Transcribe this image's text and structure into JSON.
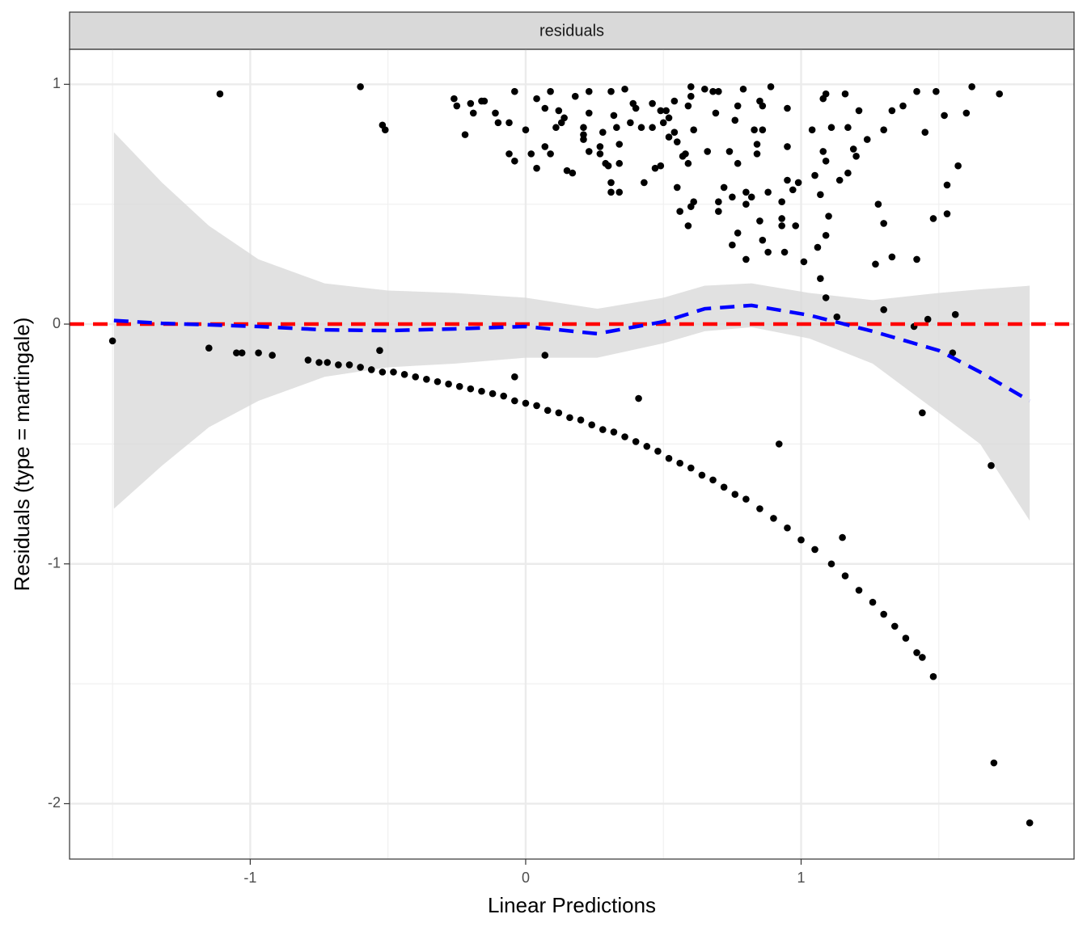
{
  "chart_data": {
    "type": "scatter",
    "facet_label": "residuals",
    "x_label": "Linear Predictions",
    "y_label": "Residuals (type = martingale)",
    "xlim": [
      -1.656,
      1.991
    ],
    "ylim": [
      -2.231,
      1.146
    ],
    "xticks": [
      -1,
      0,
      1
    ],
    "yticks": [
      -2,
      -1,
      0,
      1
    ],
    "x_minor_ticks": [
      -1.5,
      -0.5,
      0.5,
      1.5
    ],
    "y_minor_ticks": [
      -1.5,
      -0.5,
      0.5
    ],
    "grid": true,
    "points": {
      "color": "#000000",
      "x": [
        -1.11,
        -0.6,
        -0.52,
        -0.51,
        -0.26,
        -0.25,
        -0.2,
        -0.19,
        -0.22,
        -0.16,
        -0.15,
        -0.11,
        -0.1,
        -0.04,
        -0.06,
        0.0,
        -0.06,
        -0.04,
        0.02,
        0.04,
        0.04,
        0.07,
        0.07,
        0.09,
        0.09,
        0.12,
        0.13,
        0.11,
        0.14,
        0.15,
        0.17,
        0.18,
        0.21,
        0.21,
        0.21,
        0.23,
        0.23,
        0.23,
        0.27,
        0.28,
        0.27,
        0.29,
        0.3,
        0.31,
        0.31,
        0.31,
        0.32,
        0.33,
        0.34,
        0.34,
        0.34,
        0.36,
        0.38,
        0.39,
        0.4,
        0.42,
        0.43,
        0.46,
        0.46,
        0.47,
        0.49,
        0.5,
        0.49,
        0.51,
        0.52,
        0.52,
        0.54,
        0.54,
        0.55,
        0.55,
        0.56,
        0.57,
        0.58,
        0.59,
        0.59,
        0.6,
        0.6,
        0.61,
        0.59,
        0.6,
        0.61,
        0.65,
        0.66,
        0.68,
        0.69,
        0.7,
        0.7,
        0.7,
        0.72,
        0.74,
        0.75,
        0.76,
        0.77,
        0.77,
        0.79,
        0.8,
        0.8,
        0.8,
        0.82,
        0.83,
        0.84,
        0.84,
        0.85,
        0.86,
        0.86,
        0.88,
        0.85,
        0.86,
        0.89,
        0.88,
        0.77,
        0.75,
        0.93,
        0.93,
        0.93,
        0.94,
        0.95,
        0.95,
        0.95,
        0.97,
        0.99,
        0.98,
        1.01,
        1.04,
        1.05,
        1.06,
        1.07,
        1.08,
        1.08,
        1.09,
        1.09,
        1.1,
        1.11,
        1.09,
        1.07,
        1.09,
        1.13,
        1.14,
        1.16,
        1.17,
        1.17,
        1.19,
        1.2,
        1.21,
        1.24,
        1.28,
        1.3,
        1.3,
        1.33,
        1.27,
        1.33,
        1.37,
        1.42,
        1.42,
        1.45,
        1.48,
        1.49,
        1.52,
        1.53,
        1.53,
        1.57,
        1.6,
        1.62,
        1.72,
        1.3,
        1.56,
        1.46,
        1.41,
        -1.5,
        -1.15,
        -1.05,
        -1.03,
        -0.97,
        -0.92,
        -0.53,
        -0.04,
        0.07,
        0.41,
        0.92,
        1.15,
        1.44,
        1.55,
        1.69,
        1.7,
        1.83,
        1.48,
        -0.79,
        -0.75,
        -0.72,
        -0.68,
        -0.64,
        -0.6,
        -0.56,
        -0.52,
        -0.48,
        -0.44,
        -0.4,
        -0.36,
        -0.32,
        -0.28,
        -0.24,
        -0.2,
        -0.16,
        -0.12,
        -0.08,
        -0.04,
        0.0,
        0.04,
        0.08,
        0.12,
        0.16,
        0.2,
        0.24,
        0.28,
        0.32,
        0.36,
        0.4,
        0.44,
        0.48,
        0.52,
        0.56,
        0.6,
        0.64,
        0.68,
        0.72,
        0.76,
        0.8,
        0.85,
        0.9,
        0.95,
        1.0,
        1.05,
        1.11,
        1.16,
        1.21,
        1.26,
        1.3,
        1.34,
        1.38,
        1.42,
        1.44
      ],
      "y": [
        0.96,
        0.99,
        0.83,
        0.81,
        0.94,
        0.91,
        0.92,
        0.88,
        0.79,
        0.93,
        0.93,
        0.88,
        0.84,
        0.97,
        0.84,
        0.81,
        0.71,
        0.68,
        0.71,
        0.94,
        0.65,
        0.74,
        0.9,
        0.97,
        0.71,
        0.89,
        0.84,
        0.82,
        0.86,
        0.64,
        0.63,
        0.95,
        0.82,
        0.79,
        0.77,
        0.97,
        0.88,
        0.72,
        0.74,
        0.8,
        0.71,
        0.67,
        0.66,
        0.59,
        0.55,
        0.97,
        0.87,
        0.82,
        0.75,
        0.67,
        0.55,
        0.98,
        0.84,
        0.92,
        0.9,
        0.82,
        0.59,
        0.92,
        0.82,
        0.65,
        0.89,
        0.84,
        0.66,
        0.89,
        0.86,
        0.78,
        0.8,
        0.93,
        0.57,
        0.76,
        0.47,
        0.7,
        0.71,
        0.91,
        0.67,
        0.95,
        0.99,
        0.81,
        0.41,
        0.49,
        0.51,
        0.98,
        0.72,
        0.97,
        0.88,
        0.97,
        0.51,
        0.47,
        0.57,
        0.72,
        0.53,
        0.85,
        0.91,
        0.67,
        0.98,
        0.55,
        0.5,
        0.27,
        0.53,
        0.81,
        0.71,
        0.75,
        0.93,
        0.91,
        0.81,
        0.55,
        0.43,
        0.35,
        0.99,
        0.3,
        0.38,
        0.33,
        0.51,
        0.44,
        0.41,
        0.3,
        0.74,
        0.9,
        0.6,
        0.56,
        0.59,
        0.41,
        0.26,
        0.81,
        0.62,
        0.32,
        0.54,
        0.72,
        0.94,
        0.96,
        0.68,
        0.45,
        0.82,
        0.37,
        0.19,
        0.11,
        0.03,
        0.6,
        0.96,
        0.82,
        0.63,
        0.73,
        0.7,
        0.89,
        0.77,
        0.5,
        0.42,
        0.81,
        0.28,
        0.25,
        0.89,
        0.91,
        0.97,
        0.27,
        0.8,
        0.44,
        0.97,
        0.87,
        0.58,
        0.46,
        0.66,
        0.88,
        0.99,
        0.96,
        0.06,
        0.04,
        0.02,
        -0.01,
        -0.07,
        -0.1,
        -0.12,
        -0.12,
        -0.12,
        -0.13,
        -0.11,
        -0.22,
        -0.13,
        -0.31,
        -0.5,
        -0.89,
        -0.37,
        -0.12,
        -0.59,
        -1.83,
        -2.08,
        -1.47,
        -0.15,
        -0.16,
        -0.16,
        -0.17,
        -0.17,
        -0.18,
        -0.19,
        -0.2,
        -0.2,
        -0.21,
        -0.22,
        -0.23,
        -0.24,
        -0.25,
        -0.26,
        -0.27,
        -0.28,
        -0.29,
        -0.3,
        -0.32,
        -0.33,
        -0.34,
        -0.36,
        -0.37,
        -0.39,
        -0.4,
        -0.42,
        -0.44,
        -0.45,
        -0.47,
        -0.49,
        -0.51,
        -0.53,
        -0.56,
        -0.58,
        -0.6,
        -0.63,
        -0.65,
        -0.68,
        -0.71,
        -0.73,
        -0.77,
        -0.81,
        -0.85,
        -0.9,
        -0.94,
        -1.0,
        -1.05,
        -1.11,
        -1.16,
        -1.21,
        -1.26,
        -1.31,
        -1.37,
        -1.39
      ]
    },
    "smooth": {
      "color": "#0000ff",
      "x": [
        -1.495,
        -1.32,
        -1.15,
        -0.97,
        -0.73,
        -0.5,
        -0.26,
        0,
        0.26,
        0.5,
        0.65,
        0.82,
        1.03,
        1.26,
        1.5,
        1.65,
        1.83
      ],
      "y": [
        0.015,
        0.003,
        -0.003,
        -0.01,
        -0.024,
        -0.027,
        -0.02,
        -0.01,
        -0.04,
        0.01,
        0.064,
        0.078,
        0.037,
        -0.03,
        -0.11,
        -0.2,
        -0.32
      ]
    },
    "ribbon": {
      "color": "#d9d9d9",
      "x": [
        -1.495,
        -1.32,
        -1.15,
        -0.97,
        -0.73,
        -0.5,
        -0.26,
        0,
        0.26,
        0.5,
        0.65,
        0.82,
        1.03,
        1.26,
        1.5,
        1.65,
        1.83
      ],
      "upper": [
        0.8,
        0.59,
        0.41,
        0.27,
        0.17,
        0.14,
        0.13,
        0.11,
        0.064,
        0.11,
        0.16,
        0.17,
        0.13,
        0.1,
        0.13,
        0.145,
        0.16
      ],
      "lower": [
        -0.77,
        -0.59,
        -0.43,
        -0.32,
        -0.22,
        -0.18,
        -0.165,
        -0.14,
        -0.14,
        -0.08,
        -0.03,
        -0.013,
        -0.06,
        -0.165,
        -0.37,
        -0.5,
        -0.82
      ]
    },
    "hline": {
      "value": 0,
      "color": "#ff0000"
    }
  }
}
